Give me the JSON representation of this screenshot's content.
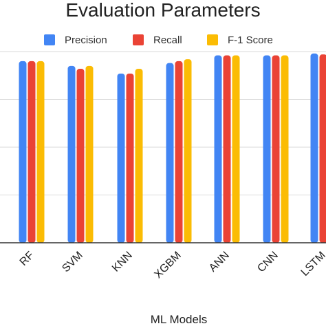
{
  "chart_data": {
    "type": "bar",
    "title": "Evaluation Parameters",
    "xlabel": "ML Models",
    "ylabel": "",
    "categories": [
      "RF",
      "SVM",
      "KNN",
      "XGBM",
      "ANN",
      "CNN",
      "LSTM"
    ],
    "series": [
      {
        "name": "Precision",
        "color": "#4285F4",
        "values": [
          0.95,
          0.925,
          0.885,
          0.94,
          0.98,
          0.98,
          0.99
        ]
      },
      {
        "name": "Recall",
        "color": "#EA4335",
        "values": [
          0.95,
          0.91,
          0.885,
          0.95,
          0.98,
          0.98,
          0.985
        ]
      },
      {
        "name": "F-1 Score",
        "color": "#FBBC04",
        "values": [
          0.95,
          0.925,
          0.91,
          0.96,
          0.98,
          0.98,
          0.985
        ]
      }
    ],
    "ylim": [
      0,
      1
    ],
    "grid": true,
    "legend_position": "top"
  }
}
